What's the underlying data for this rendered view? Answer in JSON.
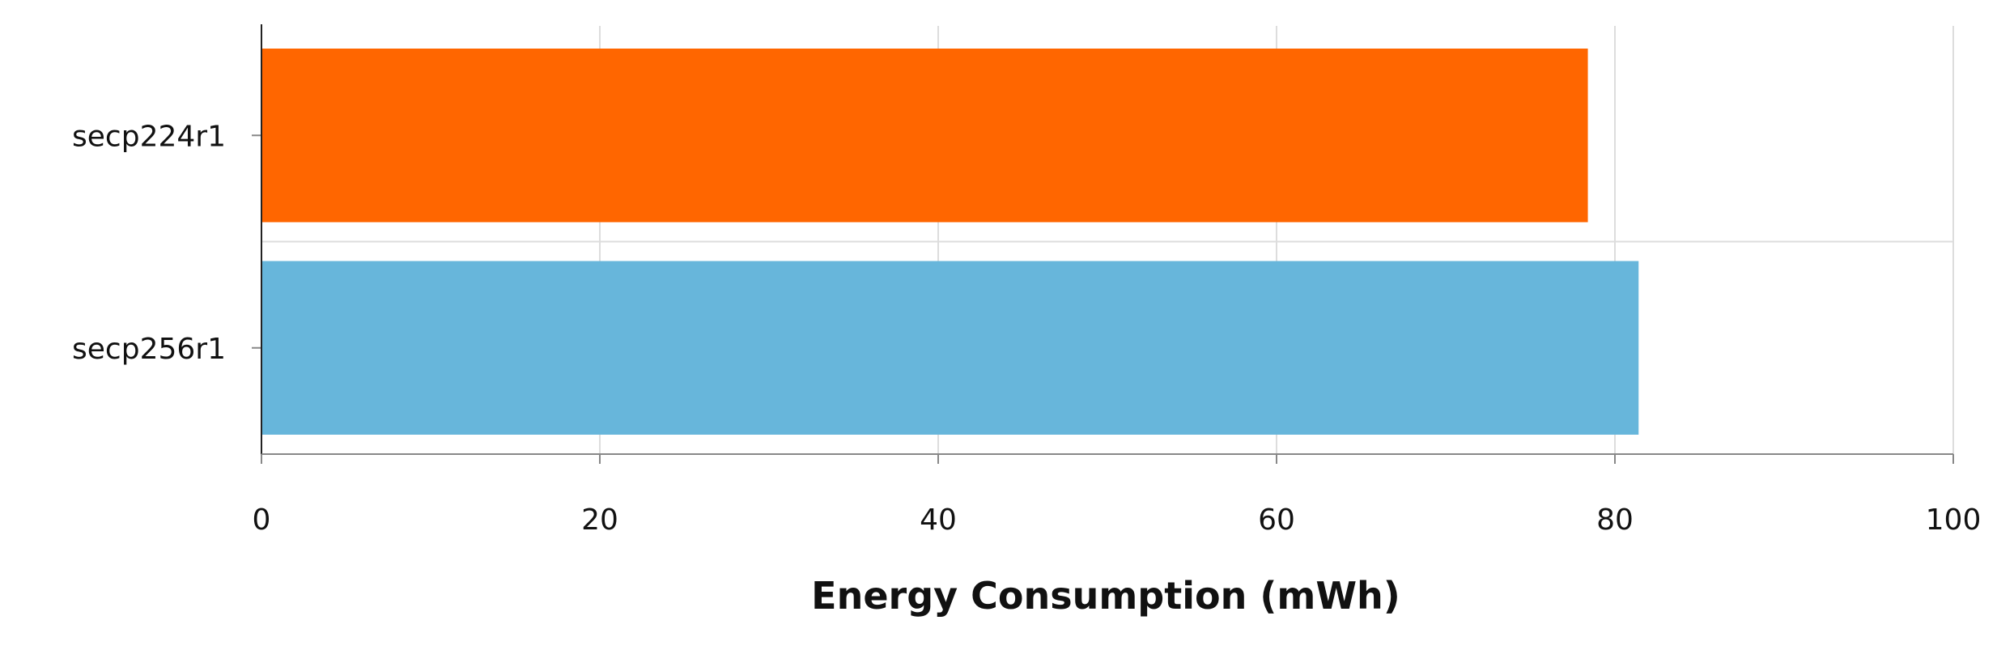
{
  "chart_data": {
    "type": "bar",
    "orientation": "horizontal",
    "title": "",
    "xlabel": "Energy Consumption (mWh)",
    "ylabel": "",
    "categories": [
      "secp224r1",
      "secp256r1"
    ],
    "values": [
      78.4,
      81.4
    ],
    "bar_colors": [
      "#ff6600",
      "#67b6db"
    ],
    "xlim": [
      0,
      100
    ],
    "xticks": [
      "0",
      "20",
      "40",
      "60",
      "80",
      "100"
    ],
    "grid": true,
    "legend": "none"
  }
}
